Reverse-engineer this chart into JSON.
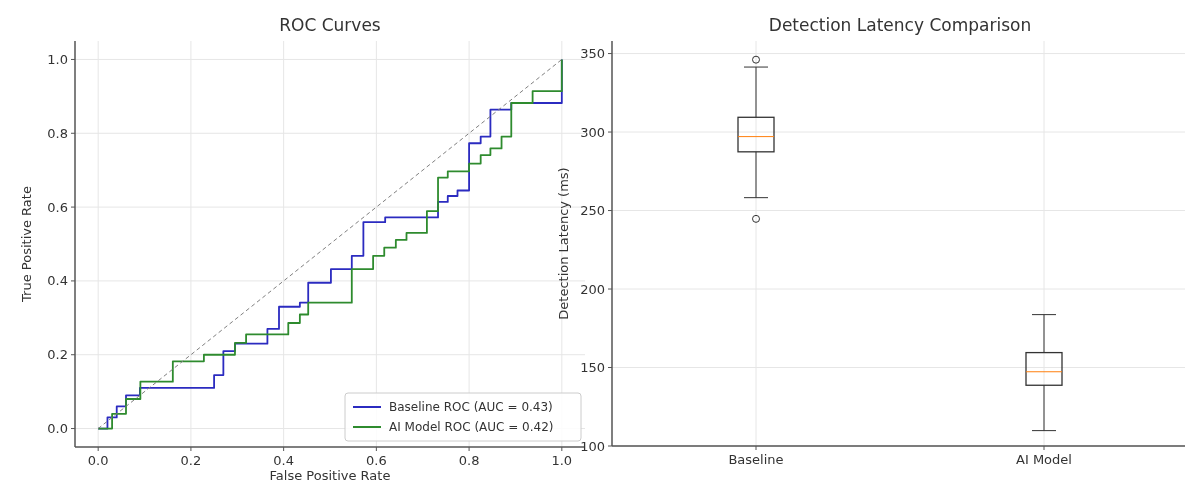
{
  "chart_data": [
    {
      "type": "line",
      "title": "ROC Curves",
      "xlabel": "False Positive Rate",
      "ylabel": "True Positive Rate",
      "xlim": [
        -0.05,
        1.05
      ],
      "ylim": [
        -0.05,
        1.05
      ],
      "xticks": [
        {
          "value": 0,
          "label": "0.0"
        },
        {
          "value": 0.2,
          "label": "0.2"
        },
        {
          "value": 0.4,
          "label": "0.4"
        },
        {
          "value": 0.6,
          "label": "0.6"
        },
        {
          "value": 0.8,
          "label": "0.8"
        },
        {
          "value": 1,
          "label": "1.0"
        }
      ],
      "yticks": [
        {
          "value": 0,
          "label": "0.0"
        },
        {
          "value": 0.2,
          "label": "0.2"
        },
        {
          "value": 0.4,
          "label": "0.4"
        },
        {
          "value": 0.6,
          "label": "0.6"
        },
        {
          "value": 0.8,
          "label": "0.8"
        },
        {
          "value": 1,
          "label": "1.0"
        }
      ],
      "grid": true,
      "legend": "bottom right",
      "series": [
        {
          "name": "Baseline ROC (AUC = 0.43)",
          "color": "#2b2bc0",
          "x": [
            0,
            0.02,
            0.02,
            0.04,
            0.04,
            0.06,
            0.06,
            0.09,
            0.09,
            0.25,
            0.25,
            0.27,
            0.27,
            0.295,
            0.295,
            0.365,
            0.365,
            0.39,
            0.39,
            0.435,
            0.435,
            0.453,
            0.453,
            0.502,
            0.502,
            0.547,
            0.547,
            0.572,
            0.572,
            0.619,
            0.619,
            0.733,
            0.733,
            0.754,
            0.754,
            0.775,
            0.775,
            0.8,
            0.8,
            0.825,
            0.825,
            0.846,
            0.846,
            0.891,
            0.891,
            1,
            1
          ],
          "values": [
            0,
            0,
            0.03,
            0.03,
            0.06,
            0.06,
            0.09,
            0.09,
            0.11,
            0.11,
            0.145,
            0.145,
            0.21,
            0.21,
            0.23,
            0.23,
            0.27,
            0.27,
            0.33,
            0.33,
            0.341,
            0.341,
            0.395,
            0.395,
            0.432,
            0.432,
            0.468,
            0.468,
            0.559,
            0.559,
            0.572,
            0.572,
            0.614,
            0.614,
            0.63,
            0.63,
            0.645,
            0.645,
            0.773,
            0.773,
            0.791,
            0.791,
            0.864,
            0.864,
            0.882,
            0.882,
            1
          ]
        },
        {
          "name": "AI Model ROC (AUC = 0.42)",
          "color": "#2e8b2e",
          "x": [
            0,
            0.03,
            0.03,
            0.06,
            0.06,
            0.091,
            0.091,
            0.161,
            0.161,
            0.228,
            0.228,
            0.295,
            0.295,
            0.319,
            0.319,
            0.41,
            0.41,
            0.435,
            0.435,
            0.453,
            0.453,
            0.547,
            0.547,
            0.593,
            0.593,
            0.617,
            0.617,
            0.642,
            0.642,
            0.665,
            0.665,
            0.709,
            0.709,
            0.733,
            0.733,
            0.754,
            0.754,
            0.8,
            0.8,
            0.825,
            0.825,
            0.846,
            0.846,
            0.87,
            0.87,
            0.891,
            0.891,
            0.937,
            0.937,
            1,
            1
          ],
          "values": [
            0,
            0,
            0.04,
            0.04,
            0.08,
            0.08,
            0.127,
            0.127,
            0.182,
            0.182,
            0.2,
            0.2,
            0.232,
            0.232,
            0.255,
            0.255,
            0.286,
            0.286,
            0.309,
            0.309,
            0.341,
            0.341,
            0.432,
            0.432,
            0.468,
            0.468,
            0.49,
            0.49,
            0.511,
            0.511,
            0.53,
            0.53,
            0.589,
            0.589,
            0.68,
            0.68,
            0.697,
            0.697,
            0.718,
            0.718,
            0.741,
            0.741,
            0.759,
            0.759,
            0.791,
            0.791,
            0.882,
            0.882,
            0.914,
            0.914,
            1
          ]
        },
        {
          "color": "#808080",
          "line_style": "dashed",
          "x": [
            0,
            1
          ],
          "values": [
            0,
            1
          ]
        }
      ]
    },
    {
      "type": "box",
      "title": "Detection Latency Comparison",
      "ylabel": "Detection Latency (ms)",
      "categories": [
        "Baseline",
        "AI Model"
      ],
      "ylim": [
        100,
        358
      ],
      "yticks": [
        100,
        150,
        200,
        250,
        300,
        350
      ],
      "grid": true,
      "boxes": [
        {
          "low": 258.2,
          "q1": 287.4,
          "median": 297.1,
          "q3": 309.4,
          "high": 341.4,
          "outliers": [
            346.1,
            244.7
          ]
        },
        {
          "low": 109.8,
          "q1": 138.7,
          "median": 147.3,
          "q3": 159.5,
          "high": 183.7
        }
      ]
    }
  ]
}
